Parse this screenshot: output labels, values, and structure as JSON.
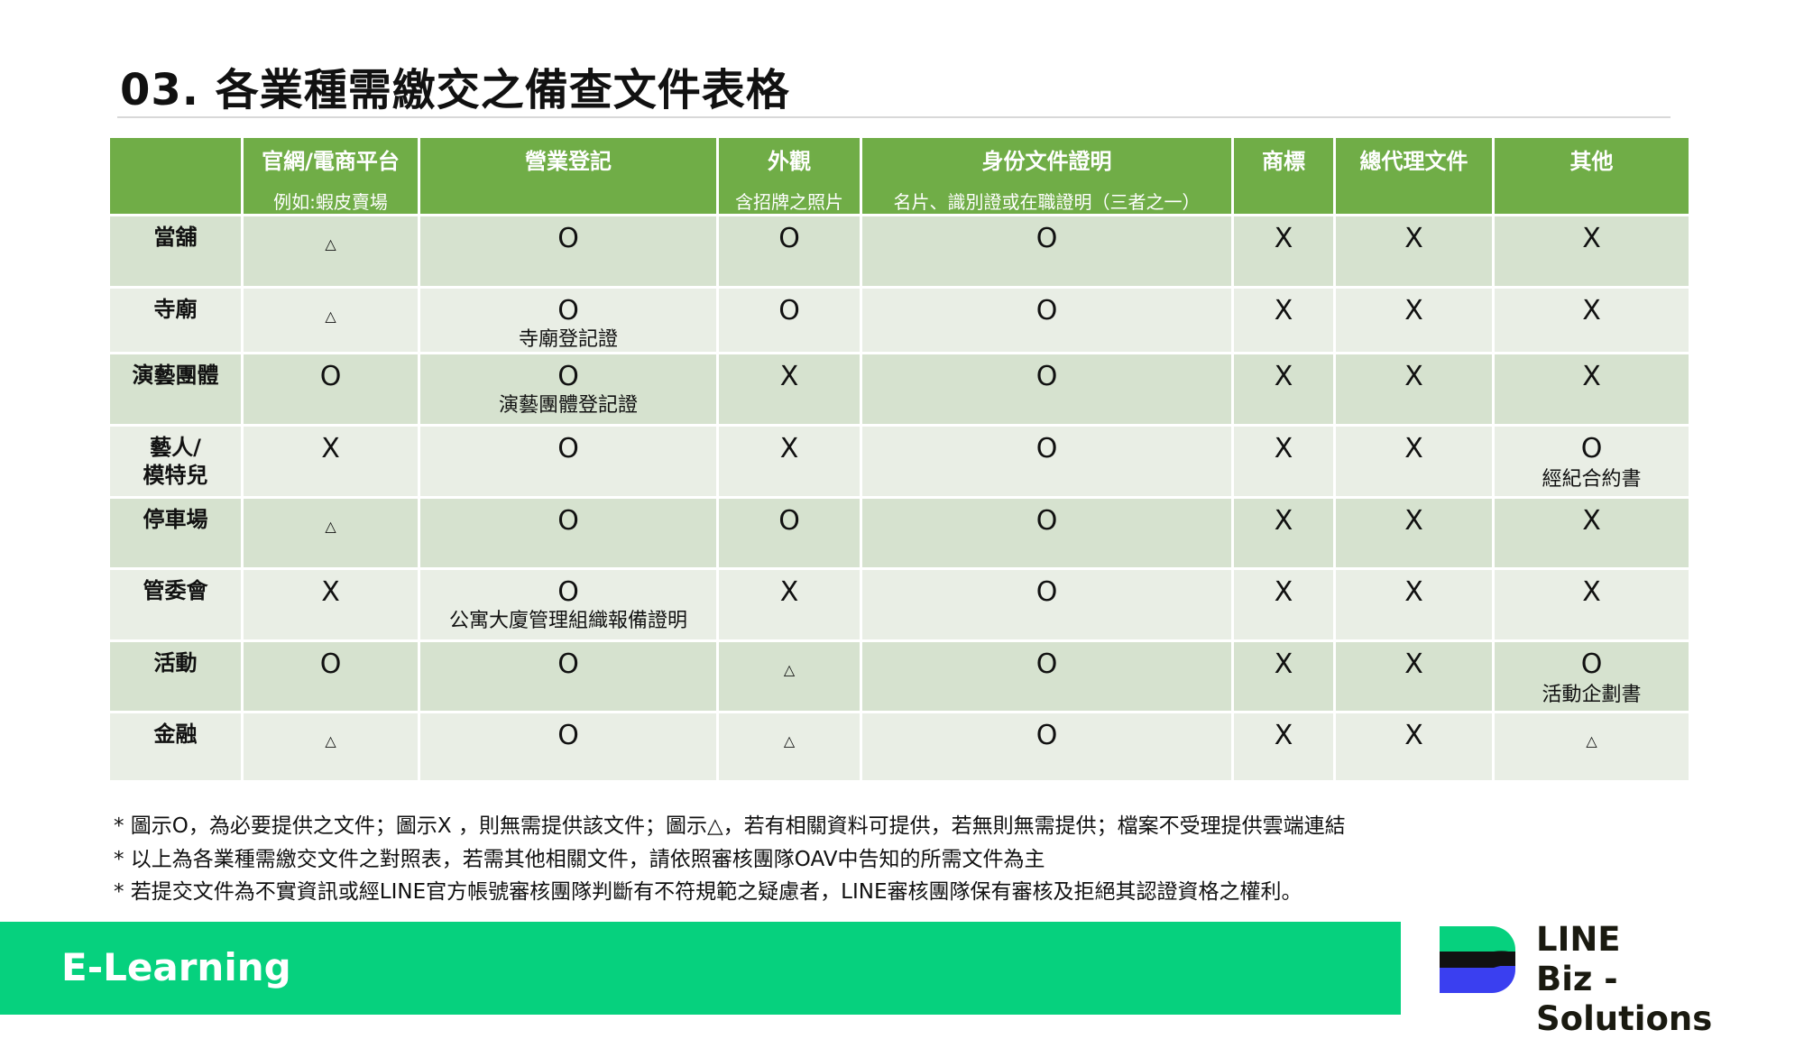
{
  "title": "03. 各業種需繳交之備查文件表格",
  "table": {
    "headers": [
      {
        "label": "",
        "sub": ""
      },
      {
        "label": "官網/電商平台",
        "sub": "例如:蝦皮賣場"
      },
      {
        "label": "營業登記",
        "sub": ""
      },
      {
        "label": "外觀",
        "sub": "含招牌之照片"
      },
      {
        "label": "身份文件證明",
        "sub": "名片、識別證或在職證明（三者之一）"
      },
      {
        "label": "商標",
        "sub": ""
      },
      {
        "label": "總代理文件",
        "sub": ""
      },
      {
        "label": "其他",
        "sub": ""
      }
    ],
    "rows": [
      {
        "name": "當舖",
        "cells": [
          {
            "s": "△"
          },
          {
            "s": "O"
          },
          {
            "s": "O"
          },
          {
            "s": "O"
          },
          {
            "s": "X"
          },
          {
            "s": "X"
          },
          {
            "s": "X"
          }
        ]
      },
      {
        "name": "寺廟",
        "cells": [
          {
            "s": "△"
          },
          {
            "s": "O",
            "n": "寺廟登記證"
          },
          {
            "s": "O"
          },
          {
            "s": "O"
          },
          {
            "s": "X"
          },
          {
            "s": "X"
          },
          {
            "s": "X"
          }
        ]
      },
      {
        "name": "演藝團體",
        "cells": [
          {
            "s": "O"
          },
          {
            "s": "O",
            "n": "演藝團體登記證"
          },
          {
            "s": "X"
          },
          {
            "s": "O"
          },
          {
            "s": "X"
          },
          {
            "s": "X"
          },
          {
            "s": "X"
          }
        ]
      },
      {
        "name": "藝人/\n模特兒",
        "cells": [
          {
            "s": "X"
          },
          {
            "s": "O"
          },
          {
            "s": "X"
          },
          {
            "s": "O"
          },
          {
            "s": "X"
          },
          {
            "s": "X"
          },
          {
            "s": "O",
            "n": "經紀合約書"
          }
        ]
      },
      {
        "name": "停車場",
        "cells": [
          {
            "s": "△"
          },
          {
            "s": "O"
          },
          {
            "s": "O"
          },
          {
            "s": "O"
          },
          {
            "s": "X"
          },
          {
            "s": "X"
          },
          {
            "s": "X"
          }
        ]
      },
      {
        "name": "管委會",
        "cells": [
          {
            "s": "X"
          },
          {
            "s": "O",
            "n": "公寓大廈管理組織報備證明"
          },
          {
            "s": "X"
          },
          {
            "s": "O"
          },
          {
            "s": "X"
          },
          {
            "s": "X"
          },
          {
            "s": "X"
          }
        ]
      },
      {
        "name": "活動",
        "cells": [
          {
            "s": "O"
          },
          {
            "s": "O"
          },
          {
            "s": "△"
          },
          {
            "s": "O"
          },
          {
            "s": "X"
          },
          {
            "s": "X"
          },
          {
            "s": "O",
            "n": "活動企劃書"
          }
        ]
      },
      {
        "name": "金融",
        "cells": [
          {
            "s": "△"
          },
          {
            "s": "O"
          },
          {
            "s": "△"
          },
          {
            "s": "O"
          },
          {
            "s": "X"
          },
          {
            "s": "X"
          },
          {
            "s": "△"
          }
        ]
      }
    ]
  },
  "notes": [
    "* 圖示O，為必要提供之文件；圖示X ，則無需提供該文件；圖示△，若有相關資料可提供，若無則無需提供；檔案不受理提供雲端連結",
    "* 以上為各業種需繳交文件之對照表，若需其他相關文件，請依照審核團隊OAV中告知的所需文件為主",
    "* 若提交文件為不實資訊或經LINE官方帳號審核團隊判斷有不符規範之疑慮者，LINE審核團隊保有審核及拒絕其認證資格之權利。"
  ],
  "footer": {
    "label": "E-Learning",
    "color": "#06d17e"
  },
  "logo": {
    "line1": "LINE",
    "line2": "Biz - Solutions"
  },
  "colors": {
    "header": "#70ad47",
    "row_dark": "#d6e2cf",
    "row_light": "#e9eee5"
  }
}
